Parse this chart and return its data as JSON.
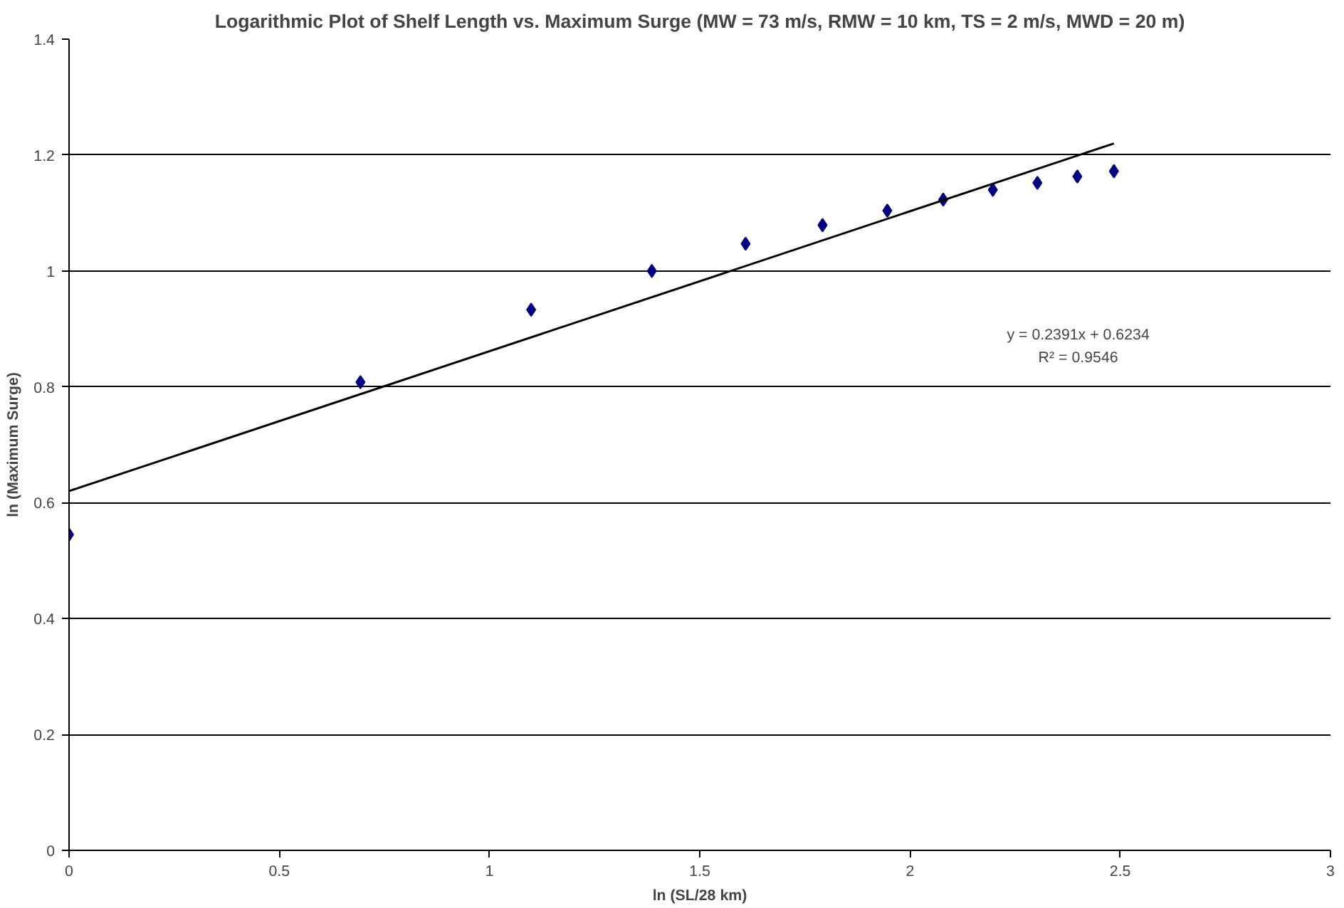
{
  "chart_data": {
    "type": "scatter",
    "title": "Logarithmic Plot of Shelf Length vs. Maximum Surge (MW = 73 m/s, RMW = 10 km, TS = 2 m/s, MWD = 20 m)",
    "xlabel": "ln (SL/28 km)",
    "ylabel": "ln (Maximum Surge)",
    "series": [
      {
        "color": "#000080",
        "marker": "diamond",
        "x": [
          0,
          0.693,
          1.099,
          1.386,
          1.609,
          1.792,
          1.946,
          2.079,
          2.197,
          2.303,
          2.398,
          2.485
        ],
        "values": [
          0.545,
          0.808,
          0.933,
          1.0,
          1.047,
          1.079,
          1.104,
          1.123,
          1.14,
          1.152,
          1.163,
          1.172
        ]
      },
      {
        "type": "line",
        "color": "#000000",
        "marker": "none",
        "line_style": "solid",
        "x": [
          0,
          2.485
        ],
        "values": [
          0.62,
          1.22
        ]
      }
    ],
    "annotations": [
      "y = 0.2391x + 0.6234",
      "R² = 0.9546"
    ],
    "xlim": [
      0,
      3
    ],
    "xticks": [
      0,
      0.5,
      1,
      1.5,
      2,
      2.5,
      3
    ],
    "ylim": [
      0,
      1.4
    ],
    "yticks": [
      0,
      0.2,
      0.4,
      0.6,
      0.8,
      1,
      1.2,
      1.4
    ],
    "grid": "y"
  }
}
